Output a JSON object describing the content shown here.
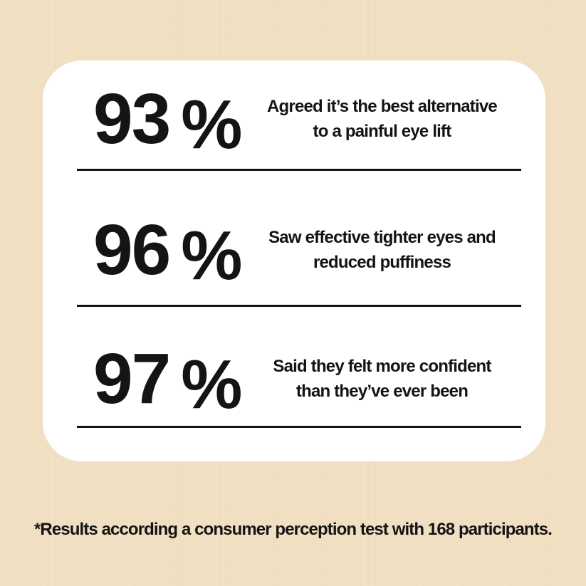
{
  "colors": {
    "background": "#f1dfc2",
    "card": "#ffffff",
    "text": "#141414",
    "divider": "#141414"
  },
  "stats": [
    {
      "value": "93",
      "unit": "%",
      "line1": "Agreed it’s the best alternative",
      "line2": "to a painful eye lift"
    },
    {
      "value": "96",
      "unit": "%",
      "line1": "Saw effective tighter eyes and",
      "line2": "reduced puffiness"
    },
    {
      "value": "97",
      "unit": "%",
      "line1": "Said they felt more confident",
      "line2": "than they’ve ever been"
    }
  ],
  "footnote": "*Results according a consumer perception test with 168 participants."
}
